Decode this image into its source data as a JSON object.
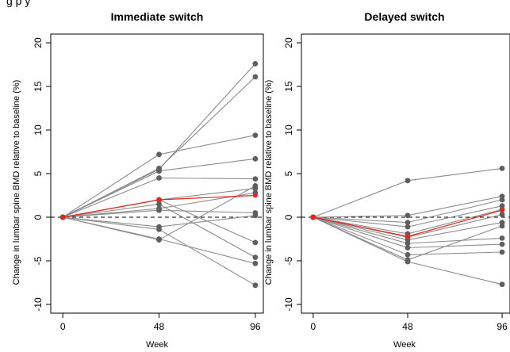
{
  "figure": {
    "clipped_top_text": "g                             p                                                     y"
  },
  "chart_data": [
    {
      "type": "line",
      "title": "Immediate switch",
      "xlabel": "Week",
      "ylabel": "Change in lumbar spine BMD relative to baseline (%)",
      "x": [
        0,
        48,
        96
      ],
      "xticks": [
        "0",
        "48",
        "96"
      ],
      "yticks": [
        "-10",
        "-5",
        "0",
        "5",
        "10",
        "15",
        "20"
      ],
      "ylim": [
        -11,
        21
      ],
      "reference_line_y": 0,
      "colors": {
        "individual": "#8c8c8c",
        "point": "#5f5f5f",
        "median": "#e8231c"
      },
      "series": [
        {
          "values": [
            0,
            5.5,
            17.6
          ]
        },
        {
          "values": [
            0,
            5.6,
            16.1
          ]
        },
        {
          "values": [
            0,
            7.2,
            9.4
          ]
        },
        {
          "values": [
            0,
            5.3,
            6.7
          ]
        },
        {
          "values": [
            0,
            4.5,
            4.4
          ]
        },
        {
          "values": [
            0,
            2.0,
            3.3
          ]
        },
        {
          "values": [
            0,
            1.0,
            2.8
          ]
        },
        {
          "values": [
            0,
            0.8,
            0.5
          ]
        },
        {
          "values": [
            0,
            -1.1,
            0.2
          ]
        },
        {
          "values": [
            0,
            2.0,
            -2.9
          ]
        },
        {
          "values": [
            0,
            1.5,
            -4.6
          ]
        },
        {
          "values": [
            0,
            -2.5,
            -5.3
          ]
        },
        {
          "values": [
            0,
            -1.4,
            -7.8
          ]
        },
        {
          "values": [
            0,
            -2.6,
            3.6
          ]
        }
      ],
      "median": {
        "values": [
          0,
          2.0,
          2.5
        ]
      }
    },
    {
      "type": "line",
      "title": "Delayed switch",
      "xlabel": "Week",
      "ylabel": "Change in lumbar spine BMD relative to baseline (%)",
      "x": [
        0,
        48,
        96
      ],
      "xticks": [
        "0",
        "48",
        "96"
      ],
      "yticks": [
        "-10",
        "-5",
        "0",
        "5",
        "10",
        "15",
        "20"
      ],
      "ylim": [
        -11,
        21
      ],
      "reference_line_y": 0,
      "colors": {
        "individual": "#8c8c8c",
        "point": "#5f5f5f",
        "median": "#e8231c"
      },
      "series": [
        {
          "values": [
            0,
            4.2,
            5.6
          ]
        },
        {
          "values": [
            0,
            0.2,
            2.4
          ]
        },
        {
          "values": [
            0,
            -0.6,
            2.0
          ]
        },
        {
          "values": [
            0,
            -1.1,
            1.3
          ]
        },
        {
          "values": [
            0,
            -1.9,
            0.9
          ]
        },
        {
          "values": [
            0,
            -2.3,
            0.3
          ]
        },
        {
          "values": [
            0,
            -2.6,
            -0.6
          ]
        },
        {
          "values": [
            0,
            -3.0,
            -2.4
          ]
        },
        {
          "values": [
            0,
            -3.5,
            -3.1
          ]
        },
        {
          "values": [
            0,
            -4.3,
            -4.0
          ]
        },
        {
          "values": [
            0,
            -4.9,
            -1.0
          ]
        },
        {
          "values": [
            0,
            -5.1,
            -7.7
          ]
        }
      ],
      "median": {
        "values": [
          0,
          -2.2,
          0.8
        ]
      }
    }
  ]
}
